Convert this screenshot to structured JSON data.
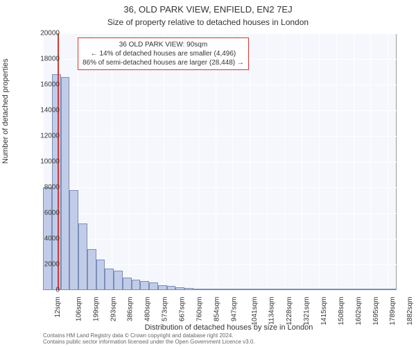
{
  "title_line1": "36, OLD PARK VIEW, ENFIELD, EN2 7EJ",
  "title_line2": "Size of property relative to detached houses in London",
  "ylabel": "Number of detached properties",
  "xlabel": "Distribution of detached houses by size in London",
  "chart": {
    "type": "histogram",
    "background_color": "#f5f7fc",
    "grid_color": "#ffffff",
    "bar_fill": "#c1cde8",
    "bar_border": "#7a8db8",
    "marker_color": "#d33",
    "ylim": [
      0,
      20000
    ],
    "ytick_step": 2000,
    "x_start": 12,
    "x_end": 1930,
    "xtick_step": 93.5,
    "xtick_labels": [
      "12sqm",
      "106sqm",
      "199sqm",
      "293sqm",
      "386sqm",
      "480sqm",
      "573sqm",
      "667sqm",
      "760sqm",
      "854sqm",
      "947sqm",
      "1041sqm",
      "1134sqm",
      "1228sqm",
      "1321sqm",
      "1415sqm",
      "1508sqm",
      "1602sqm",
      "1695sqm",
      "1789sqm",
      "1882sqm"
    ],
    "bar_values": [
      8000,
      16800,
      16600,
      7800,
      5200,
      3200,
      2400,
      1700,
      1500,
      1000,
      800,
      700,
      600,
      400,
      300,
      200,
      150,
      120,
      100,
      100,
      80,
      60,
      60,
      50,
      40,
      30,
      30,
      30,
      20,
      20,
      20,
      20,
      10,
      10,
      10,
      10,
      10,
      10,
      10,
      10
    ],
    "marker_x": 90
  },
  "annotation": {
    "line1": "36 OLD PARK VIEW: 90sqm",
    "line2": "← 14% of detached houses are smaller (4,496)",
    "line3": "86% of semi-detached houses are larger (28,448) →"
  },
  "credits": {
    "line1": "Contains HM Land Registry data © Crown copyright and database right 2024.",
    "line2": "Contains public sector information licensed under the Open Government Licence v3.0."
  }
}
